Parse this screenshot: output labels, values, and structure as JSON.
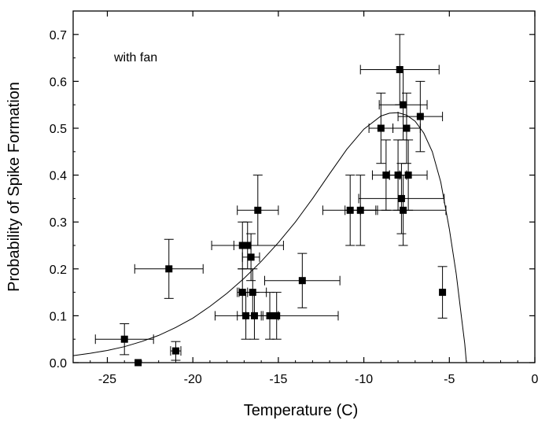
{
  "chart_data": {
    "type": "scatter",
    "title": "",
    "xlabel": "Temperature (C)",
    "ylabel": "Probability of Spike Formation",
    "xlim": [
      -27,
      0
    ],
    "ylim": [
      0,
      0.75
    ],
    "xticks": [
      -25,
      -20,
      -15,
      -10,
      -5,
      0
    ],
    "yticks": [
      0.0,
      0.1,
      0.2,
      0.3,
      0.4,
      0.5,
      0.6,
      0.7
    ],
    "xtick_labels": [
      "-25",
      "-20",
      "-15",
      "-10",
      "-5",
      "0"
    ],
    "ytick_labels": [
      "0.0",
      "0.1",
      "0.2",
      "0.3",
      "0.4",
      "0.5",
      "0.6",
      "0.7"
    ],
    "grid": false,
    "annotation": "with fan",
    "points": [
      {
        "x": -24.0,
        "y": 0.05,
        "xerr": 1.7,
        "yerr": 0.033
      },
      {
        "x": -23.2,
        "y": 0.0,
        "xerr": 0,
        "yerr": 0
      },
      {
        "x": -21.0,
        "y": 0.025,
        "xerr": 0.3,
        "yerr": 0.02
      },
      {
        "x": -21.4,
        "y": 0.2,
        "xerr": 2.0,
        "yerr": 0.063
      },
      {
        "x": -17.1,
        "y": 0.25,
        "xerr": 0.5,
        "yerr": 0.05
      },
      {
        "x": -16.8,
        "y": 0.25,
        "xerr": 2.1,
        "yerr": 0.05
      },
      {
        "x": -16.6,
        "y": 0.225,
        "xerr": 0.5,
        "yerr": 0.05
      },
      {
        "x": -16.2,
        "y": 0.325,
        "xerr": 1.2,
        "yerr": 0.075
      },
      {
        "x": -17.1,
        "y": 0.15,
        "xerr": 0.3,
        "yerr": 0.05
      },
      {
        "x": -16.5,
        "y": 0.15,
        "xerr": 0.8,
        "yerr": 0.05
      },
      {
        "x": -16.9,
        "y": 0.1,
        "xerr": 0.5,
        "yerr": 0.05
      },
      {
        "x": -16.4,
        "y": 0.1,
        "xerr": 0.5,
        "yerr": 0.05
      },
      {
        "x": -15.5,
        "y": 0.1,
        "xerr": 0.5,
        "yerr": 0.05
      },
      {
        "x": -15.1,
        "y": 0.1,
        "xerr": 3.6,
        "yerr": 0.05
      },
      {
        "x": -13.6,
        "y": 0.175,
        "xerr": 2.2,
        "yerr": 0.058
      },
      {
        "x": -10.8,
        "y": 0.325,
        "xerr": 1.6,
        "yerr": 0.075
      },
      {
        "x": -10.2,
        "y": 0.325,
        "xerr": 0.9,
        "yerr": 0.075
      },
      {
        "x": -9.0,
        "y": 0.5,
        "xerr": 0.7,
        "yerr": 0.075
      },
      {
        "x": -7.9,
        "y": 0.625,
        "xerr": 2.3,
        "yerr": 0.075
      },
      {
        "x": -7.7,
        "y": 0.55,
        "xerr": 1.4,
        "yerr": 0.075
      },
      {
        "x": -7.5,
        "y": 0.5,
        "xerr": 0.8,
        "yerr": 0.075
      },
      {
        "x": -6.7,
        "y": 0.525,
        "xerr": 1.3,
        "yerr": 0.075
      },
      {
        "x": -8.7,
        "y": 0.4,
        "xerr": 0.8,
        "yerr": 0.075
      },
      {
        "x": -8.0,
        "y": 0.4,
        "xerr": 0.5,
        "yerr": 0.075
      },
      {
        "x": -7.4,
        "y": 0.4,
        "xerr": 1.1,
        "yerr": 0.075
      },
      {
        "x": -7.8,
        "y": 0.35,
        "xerr": 2.5,
        "yerr": 0.075
      },
      {
        "x": -7.7,
        "y": 0.325,
        "xerr": 2.5,
        "yerr": 0.075
      },
      {
        "x": -5.4,
        "y": 0.15,
        "xerr": 0,
        "yerr": 0.055
      }
    ],
    "fit_curve": {
      "type": "line",
      "points": [
        [
          -27,
          0.015
        ],
        [
          -26,
          0.02
        ],
        [
          -25,
          0.026
        ],
        [
          -24,
          0.034
        ],
        [
          -23,
          0.045
        ],
        [
          -22,
          0.058
        ],
        [
          -21,
          0.075
        ],
        [
          -20,
          0.095
        ],
        [
          -19,
          0.12
        ],
        [
          -18,
          0.148
        ],
        [
          -17,
          0.18
        ],
        [
          -16,
          0.216
        ],
        [
          -15,
          0.256
        ],
        [
          -14,
          0.3
        ],
        [
          -13,
          0.35
        ],
        [
          -12,
          0.403
        ],
        [
          -11,
          0.455
        ],
        [
          -10,
          0.498
        ],
        [
          -9,
          0.526
        ],
        [
          -8.5,
          0.532
        ],
        [
          -8,
          0.533
        ],
        [
          -7.5,
          0.528
        ],
        [
          -7,
          0.515
        ],
        [
          -6.5,
          0.49
        ],
        [
          -6,
          0.45
        ],
        [
          -5.5,
          0.385
        ],
        [
          -5,
          0.285
        ],
        [
          -4.6,
          0.19
        ],
        [
          -4.3,
          0.1
        ],
        [
          -4.1,
          0.04
        ],
        [
          -4.0,
          0.0
        ]
      ]
    }
  }
}
